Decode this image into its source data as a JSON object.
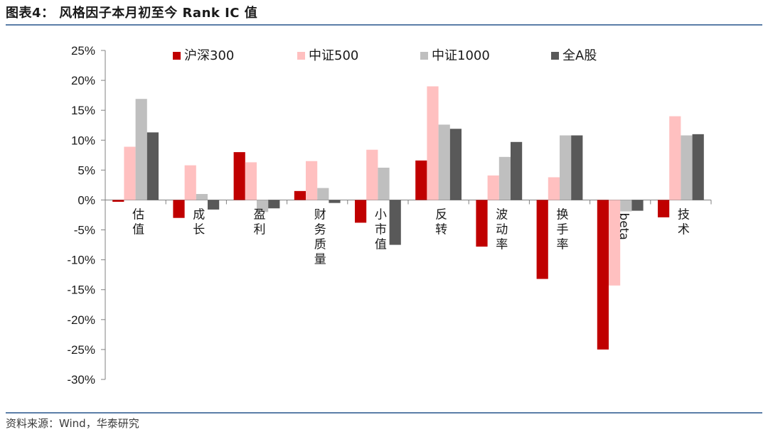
{
  "header": {
    "title": "图表4：  风格因子本月初至今 Rank IC 值"
  },
  "footer": {
    "source": "资料来源：Wind，华泰研究"
  },
  "chart_data": {
    "type": "bar",
    "categories": [
      "估值",
      "成长",
      "盈利",
      "财务质量",
      "小市值",
      "反转",
      "波动率",
      "换手率",
      "beta",
      "技术"
    ],
    "series": [
      {
        "name": "沪深300",
        "color": "#c00000",
        "values": [
          -0.3,
          -3.0,
          8.0,
          1.5,
          -3.8,
          6.6,
          -7.8,
          -13.2,
          -25.0,
          -2.9
        ]
      },
      {
        "name": "中证500",
        "color": "#ffc0c0",
        "values": [
          8.9,
          5.8,
          6.3,
          6.5,
          8.4,
          19.0,
          4.1,
          3.8,
          -14.3,
          14.0
        ]
      },
      {
        "name": "中证1000",
        "color": "#bfbfbf",
        "values": [
          16.9,
          1.0,
          -2.0,
          2.0,
          5.4,
          12.6,
          7.2,
          10.8,
          -1.9,
          10.8
        ]
      },
      {
        "name": "全A股",
        "color": "#595959",
        "values": [
          11.3,
          -1.6,
          -1.4,
          -0.5,
          -7.5,
          11.9,
          9.7,
          10.8,
          -1.8,
          11.0
        ]
      }
    ],
    "ylim": [
      -30,
      25
    ],
    "yticks": [
      25,
      20,
      15,
      10,
      5,
      0,
      -5,
      -10,
      -15,
      -20,
      -25,
      -30
    ],
    "ytick_format": "percent",
    "xlabel": "",
    "ylabel": "",
    "legend": {
      "placement": "top",
      "columns": 4
    },
    "grid": false
  }
}
